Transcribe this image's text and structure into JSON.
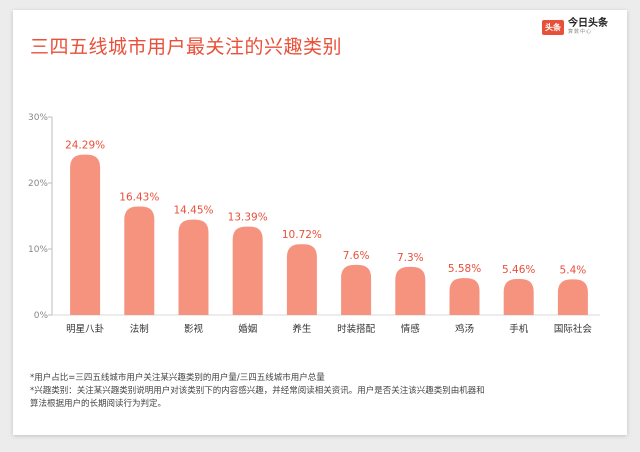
{
  "header": {
    "title": "三四五线城市用户最关注的兴趣类别",
    "logo_badge": "头条",
    "logo_name": "今日头条",
    "logo_sub": "算数中心"
  },
  "chart_data": {
    "type": "bar",
    "title": "三四五线城市用户最关注的兴趣类别",
    "categories": [
      "明星八卦",
      "法制",
      "影视",
      "婚姻",
      "养生",
      "时装搭配",
      "情感",
      "鸡汤",
      "手机",
      "国际社会"
    ],
    "values": [
      24.29,
      16.43,
      14.45,
      13.39,
      10.72,
      7.6,
      7.3,
      5.58,
      5.46,
      5.4
    ],
    "value_labels": [
      "24.29%",
      "16.43%",
      "14.45%",
      "13.39%",
      "10.72%",
      "7.6%",
      "7.3%",
      "5.58%",
      "5.46%",
      "5.4%"
    ],
    "yticks": [
      "0%",
      "10%",
      "20%",
      "30%"
    ],
    "ylim": [
      0,
      30
    ],
    "xlabel": "",
    "ylabel": "",
    "grid": false,
    "bar_color": "#f5937f",
    "label_color": "#e8503a"
  },
  "notes": [
    "*用户占比=三四五线城市用户关注某兴趣类别的用户量/三四五线城市用户总量",
    "*兴趣类别：关注某兴趣类别说明用户对该类别下的内容感兴趣，并经常阅读相关资讯。用户是否关注该兴趣类别由机器和",
    "算法根据用户的长期阅读行为判定。"
  ]
}
